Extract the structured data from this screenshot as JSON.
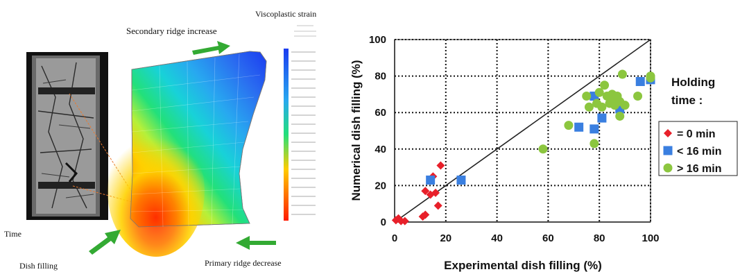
{
  "left_panel": {
    "title_strain": "Viscoplastic strain",
    "label_secondary": "Secondary ridge increase",
    "label_primary": "Primary ridge decrease",
    "label_time": "Time",
    "label_dish": "Dish filling"
  },
  "colors": {
    "arrow": "#33aa33",
    "series_0": "#e8202a",
    "series_1": "#3a7fe0",
    "series_2": "#8cc63f"
  },
  "chart_data": {
    "type": "scatter",
    "xlabel": "Experimental dish filling (%)",
    "ylabel": "Numerical dish filling (%)",
    "xlim": [
      0,
      100
    ],
    "ylim": [
      0,
      100
    ],
    "xticks": [
      0,
      20,
      40,
      60,
      80,
      100
    ],
    "yticks": [
      0,
      20,
      40,
      60,
      80,
      100
    ],
    "grid": "dotted",
    "reference_line": "y = x",
    "legend_title": "Holding time :",
    "legend_position": "right",
    "series": [
      {
        "name": "= 0 min",
        "marker": "diamond",
        "color": "#e8202a",
        "points": [
          [
            0.5,
            1
          ],
          [
            1.5,
            2
          ],
          [
            2.5,
            0.5
          ],
          [
            4,
            0.5
          ],
          [
            11,
            3
          ],
          [
            12,
            4
          ],
          [
            12,
            17
          ],
          [
            14,
            15
          ],
          [
            15,
            25
          ],
          [
            16,
            16
          ],
          [
            17,
            9
          ],
          [
            18,
            31
          ]
        ]
      },
      {
        "name": "< 16 min",
        "marker": "square",
        "color": "#3a7fe0",
        "points": [
          [
            14,
            23
          ],
          [
            26,
            23
          ],
          [
            72,
            52
          ],
          [
            78,
            51
          ],
          [
            78,
            69
          ],
          [
            81,
            57
          ],
          [
            88,
            62
          ],
          [
            96,
            77
          ],
          [
            100,
            78
          ]
        ]
      },
      {
        "name": "> 16 min",
        "marker": "circle",
        "color": "#8cc63f",
        "points": [
          [
            58,
            40
          ],
          [
            68,
            53
          ],
          [
            75,
            69
          ],
          [
            76,
            63
          ],
          [
            78,
            43
          ],
          [
            79,
            65
          ],
          [
            80,
            71
          ],
          [
            81,
            63
          ],
          [
            82,
            75
          ],
          [
            83,
            69
          ],
          [
            84,
            65
          ],
          [
            85,
            70
          ],
          [
            86,
            67
          ],
          [
            86,
            64
          ],
          [
            87,
            69
          ],
          [
            88,
            66
          ],
          [
            88,
            58
          ],
          [
            89,
            81
          ],
          [
            90,
            64
          ],
          [
            95,
            69
          ],
          [
            100,
            80
          ],
          [
            100,
            79
          ]
        ]
      }
    ]
  }
}
